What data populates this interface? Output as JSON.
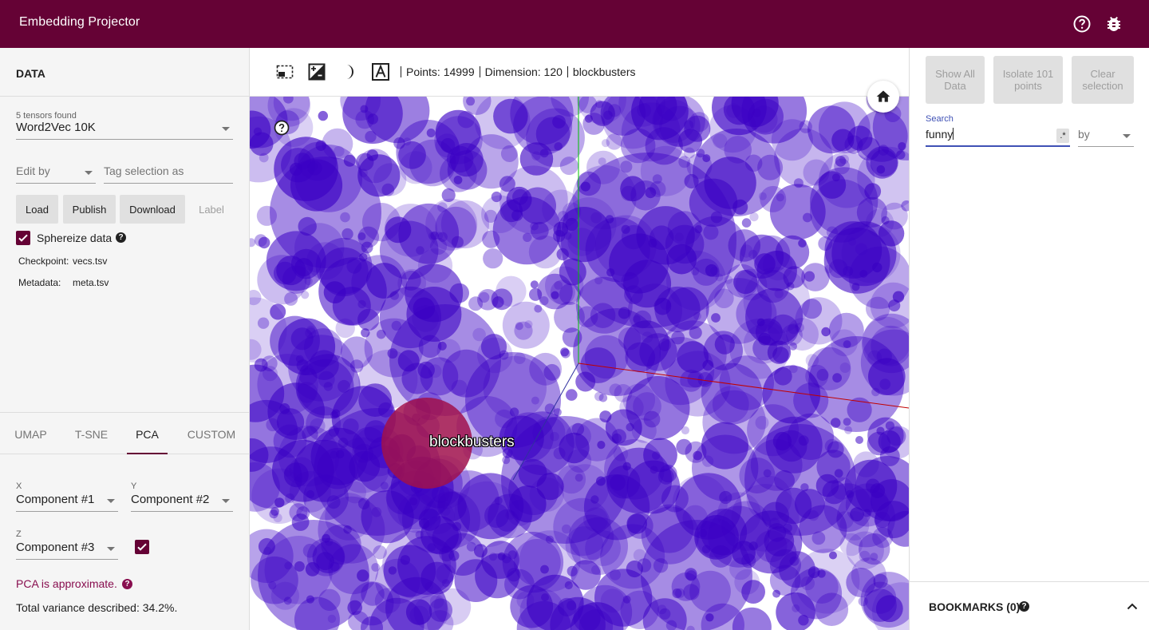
{
  "app": {
    "title": "Embedding Projector"
  },
  "colors": {
    "brand": "#650235",
    "points": "#3a00c4",
    "accent": "#3f51b5"
  },
  "data_panel": {
    "header": "DATA",
    "tensors_found": "5 tensors found",
    "tensor_selected": "Word2Vec 10K",
    "edit_by_placeholder": "Edit by",
    "tag_selection_placeholder": "Tag selection as",
    "buttons": {
      "load": "Load",
      "publish": "Publish",
      "download": "Download",
      "label": "Label"
    },
    "sphereize_label": "Sphereize data",
    "sphereize_checked": true,
    "checkpoint_label": "Checkpoint:",
    "checkpoint_value": "vecs.tsv",
    "metadata_label": "Metadata:",
    "metadata_value": "meta.tsv"
  },
  "projection_tabs": [
    "UMAP",
    "T-SNE",
    "PCA",
    "CUSTOM"
  ],
  "active_tab": "PCA",
  "pca": {
    "x_label": "X",
    "x_value": "Component #1",
    "y_label": "Y",
    "y_value": "Component #2",
    "z_label": "Z",
    "z_value": "Component #3",
    "z_enabled": true,
    "approx_text": "PCA is approximate.",
    "variance_text": "Total variance described: 34.2%."
  },
  "toolbar": {
    "points_text": "Points: 14999",
    "dimension_text": "Dimension: 120",
    "selected_word": "blockbusters",
    "icons": [
      "selection-icon",
      "night-mode-icon",
      "contrast-icon",
      "label-toggle-icon"
    ]
  },
  "scatter": {
    "hovered_label": "blockbusters"
  },
  "right_panel": {
    "show_all": "Show All Data",
    "isolate": "Isolate 101 points",
    "clear": "Clear selection",
    "search_label": "Search",
    "search_value": "funny",
    "regex_label": ".*",
    "by_placeholder": "by",
    "bookmarks_title": "BOOKMARKS (0)"
  }
}
